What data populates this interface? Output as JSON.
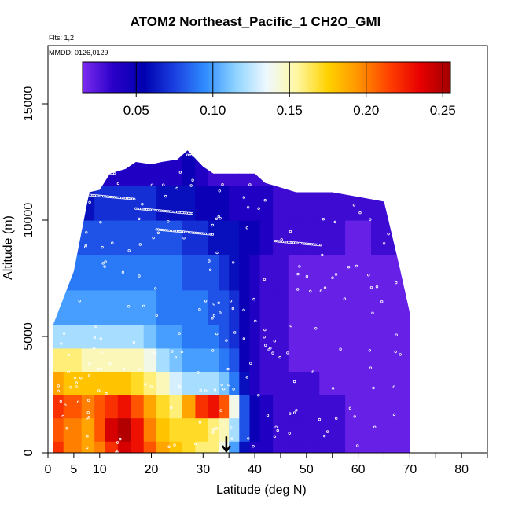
{
  "chart_data": {
    "type": "heatmap",
    "title": "ATOM2 Northeast_Pacific_1 CH2O_GMI",
    "note_flights": "Flts: 1,2",
    "note_dates": "MMDD: 0126,0129",
    "xlabel": "Latitude (deg N)",
    "ylabel": "Altitude (m)",
    "xlim": [
      0,
      85
    ],
    "ylim": [
      0,
      17500
    ],
    "x_ticks": [
      0,
      5,
      10,
      20,
      30,
      40,
      50,
      60,
      70,
      80
    ],
    "y_ticks": [
      0,
      5000,
      10000,
      15000
    ],
    "colorbar": {
      "range": [
        0.015,
        0.255
      ],
      "ticks": [
        0.05,
        0.1,
        0.15,
        0.2,
        0.25
      ],
      "tick_labels": [
        "0.05",
        "0.10",
        "0.15",
        "0.20",
        "0.25"
      ],
      "colors": [
        "#7b2cf0",
        "#2a00c8",
        "#0000b0",
        "#1a40e0",
        "#2f8cff",
        "#8fd4ff",
        "#eef8ff",
        "#fff7a0",
        "#ffd200",
        "#ff9400",
        "#ff4000",
        "#e80000",
        "#a00000"
      ]
    },
    "grid": false,
    "arrow_marker_latitude": 34.5,
    "curtain_profile": {
      "latitude": [
        1,
        5,
        8,
        10,
        12,
        15,
        17,
        20,
        22,
        25,
        27,
        30,
        32,
        34,
        36,
        38,
        40,
        42,
        45,
        48,
        50,
        55,
        60,
        65,
        68,
        70
      ],
      "top_altitude_m": [
        5500,
        7800,
        11200,
        11300,
        12000,
        12200,
        12500,
        12400,
        12500,
        12600,
        13000,
        12300,
        12000,
        12000,
        12000,
        12000,
        12000,
        11600,
        11400,
        11200,
        11200,
        11200,
        11000,
        10800,
        8000,
        6000
      ]
    },
    "layers": [
      {
        "altitude_range_m": [
          0,
          500
        ],
        "values_by_latitude": [
          0.22,
          0.2,
          0.19,
          0.2,
          0.22,
          0.24,
          0.23,
          0.21,
          0.19,
          0.18,
          0.17,
          0.16,
          0.16,
          0.14,
          0.1,
          0.06,
          0.04,
          0.04,
          0.03,
          0.03,
          0.03,
          0.03,
          0.02,
          0.02,
          0.02,
          0.02
        ]
      },
      {
        "altitude_range_m": [
          500,
          1500
        ],
        "values_by_latitude": [
          0.21,
          0.2,
          0.19,
          0.21,
          0.24,
          0.25,
          0.23,
          0.2,
          0.18,
          0.17,
          0.17,
          0.17,
          0.16,
          0.15,
          0.12,
          0.08,
          0.05,
          0.04,
          0.03,
          0.03,
          0.03,
          0.03,
          0.02,
          0.02,
          0.02,
          0.02
        ]
      },
      {
        "altitude_range_m": [
          1500,
          2500
        ],
        "values_by_latitude": [
          0.22,
          0.21,
          0.2,
          0.21,
          0.22,
          0.23,
          0.21,
          0.19,
          0.17,
          0.16,
          0.19,
          0.22,
          0.23,
          0.21,
          0.14,
          0.08,
          0.05,
          0.04,
          0.03,
          0.03,
          0.03,
          0.03,
          0.02,
          0.02,
          0.02,
          0.02
        ]
      },
      {
        "altitude_range_m": [
          2500,
          3500
        ],
        "values_by_latitude": [
          0.19,
          0.18,
          0.18,
          0.18,
          0.18,
          0.18,
          0.17,
          0.16,
          0.15,
          0.13,
          0.12,
          0.12,
          0.12,
          0.11,
          0.09,
          0.06,
          0.04,
          0.03,
          0.03,
          0.03,
          0.03,
          0.02,
          0.02,
          0.02,
          0.02,
          0.02
        ]
      },
      {
        "altitude_range_m": [
          3500,
          4500
        ],
        "values_by_latitude": [
          0.16,
          0.16,
          0.15,
          0.15,
          0.15,
          0.15,
          0.15,
          0.14,
          0.12,
          0.11,
          0.1,
          0.1,
          0.1,
          0.09,
          0.08,
          0.05,
          0.04,
          0.03,
          0.03,
          0.02,
          0.02,
          0.02,
          0.02,
          0.02,
          0.02,
          0.02
        ]
      },
      {
        "altitude_range_m": [
          4500,
          5500
        ],
        "values_by_latitude": [
          0.12,
          0.12,
          0.12,
          0.12,
          0.12,
          0.12,
          0.12,
          0.11,
          0.1,
          0.1,
          0.09,
          0.09,
          0.09,
          0.08,
          0.07,
          0.05,
          0.04,
          0.03,
          0.03,
          0.02,
          0.02,
          0.02,
          0.02,
          0.02,
          0.02,
          0.02
        ]
      },
      {
        "altitude_range_m": [
          5500,
          7000
        ],
        "values_by_latitude": [
          0.1,
          0.1,
          0.1,
          0.1,
          0.1,
          0.1,
          0.1,
          0.1,
          0.09,
          0.09,
          0.09,
          0.09,
          0.08,
          0.08,
          0.07,
          0.05,
          0.04,
          0.03,
          0.03,
          0.02,
          0.02,
          0.02,
          0.02,
          0.02,
          0.02,
          0.02
        ]
      },
      {
        "altitude_range_m": [
          7000,
          8500
        ],
        "values_by_latitude": [
          0.09,
          0.09,
          0.09,
          0.09,
          0.09,
          0.09,
          0.09,
          0.09,
          0.09,
          0.09,
          0.08,
          0.08,
          0.08,
          0.07,
          0.06,
          0.05,
          0.04,
          0.03,
          0.03,
          0.02,
          0.02,
          0.02,
          0.02,
          0.02,
          0.02,
          0.02
        ]
      },
      {
        "altitude_range_m": [
          8500,
          10000
        ],
        "values_by_latitude": [
          0.07,
          0.08,
          0.08,
          0.08,
          0.08,
          0.08,
          0.08,
          0.08,
          0.08,
          0.08,
          0.07,
          0.07,
          0.06,
          0.06,
          0.06,
          0.05,
          0.05,
          0.04,
          0.03,
          0.03,
          0.03,
          0.03,
          0.02,
          0.03,
          0.03,
          0.03
        ]
      },
      {
        "altitude_range_m": [
          10000,
          11500
        ],
        "values_by_latitude": [
          0.06,
          0.06,
          0.06,
          0.07,
          0.07,
          0.07,
          0.07,
          0.07,
          0.06,
          0.06,
          0.06,
          0.05,
          0.05,
          0.05,
          0.04,
          0.04,
          0.04,
          0.04,
          0.03,
          0.03,
          0.03,
          0.03,
          0.03,
          0.03,
          0.03,
          0.03
        ]
      },
      {
        "altitude_range_m": [
          11500,
          13000
        ],
        "values_by_latitude": [
          0.04,
          0.04,
          0.04,
          0.04,
          0.04,
          0.04,
          0.04,
          0.04,
          0.04,
          0.04,
          0.05,
          0.04,
          0.03,
          0.03,
          0.03,
          0.03,
          0.03,
          0.03,
          0.03,
          0.03,
          0.03,
          0.03,
          0.03,
          0.03,
          0.03,
          0.03
        ]
      }
    ]
  }
}
